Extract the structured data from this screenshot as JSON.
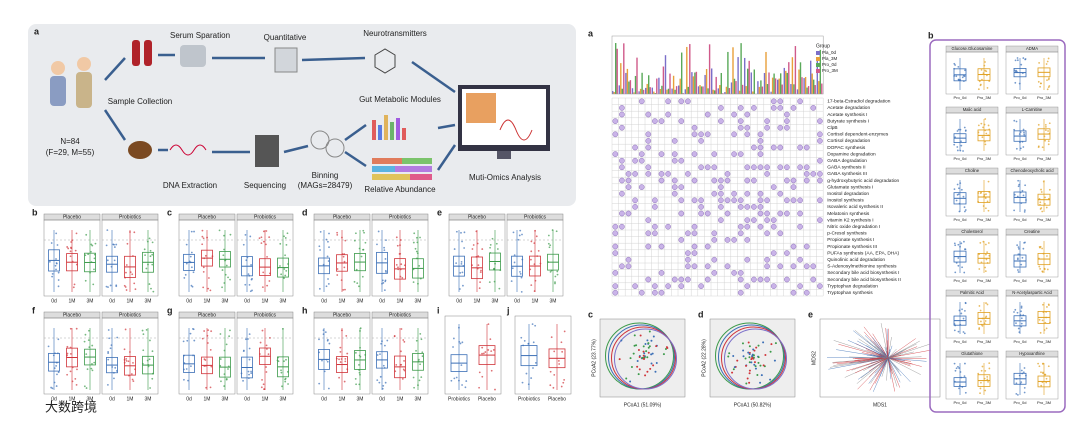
{
  "workflow": {
    "letter": "a",
    "n": "N=84",
    "sex": "(F=29, M=55)",
    "steps": [
      "Sample Collection",
      "Serum Sparation",
      "Quantitative",
      "Neurotransmitters",
      "Gut Metabolic Modules",
      "DNA Extraction",
      "Sequencing",
      "Binning",
      "(MAGs=28479)",
      "Relative Abundance",
      "Muti-Omics Analysis"
    ]
  },
  "clinical_panels": [
    {
      "letter": "b",
      "groups": [
        "Placebo",
        "Probiotics"
      ],
      "times": [
        "0d",
        "1M",
        "3M"
      ]
    },
    {
      "letter": "c",
      "groups": [
        "Placebo",
        "Probiotics"
      ],
      "times": [
        "0d",
        "1M",
        "3M"
      ]
    },
    {
      "letter": "d",
      "groups": [
        "Placebo",
        "Probiotics"
      ],
      "times": [
        "0d",
        "1M",
        "3M"
      ]
    },
    {
      "letter": "e",
      "groups": [
        "Placebo",
        "Probiotics"
      ],
      "times": [
        "0d",
        "1M",
        "3M"
      ]
    },
    {
      "letter": "f",
      "groups": [
        "Placebo",
        "Probiotics"
      ],
      "times": [
        "0d",
        "1M",
        "3M"
      ]
    },
    {
      "letter": "g",
      "groups": [
        "Placebo",
        "Probiotics"
      ],
      "times": [
        "0d",
        "1M",
        "3M"
      ]
    },
    {
      "letter": "h",
      "groups": [
        "Placebo",
        "Probiotics"
      ],
      "times": [
        "0d",
        "1M",
        "3M"
      ]
    }
  ],
  "comparison_panels": [
    {
      "letter": "i",
      "labels": [
        "Probiotics",
        "Placebo"
      ]
    },
    {
      "letter": "j",
      "labels": [
        "Probiotics",
        "Placebo"
      ]
    }
  ],
  "modules": {
    "letter": "a",
    "legend_title": "Group",
    "groups": [
      "Pla_0d",
      "Pla_3M",
      "Pro_0d",
      "Pro_3M"
    ],
    "names": [
      "17-beta-Estradiol degradation",
      "Acetate degradation",
      "Acetate synthesis I",
      "Butyrate synthesis I",
      "ClpB",
      "Cortisol dependent-enzymes",
      "Cortisol degradation",
      "DOPAC synthesis",
      "Dopamine degradation",
      "GABA degradation",
      "GABA synthesis II",
      "GABA synthesis III",
      "g-hydroxybutyric acid degradation",
      "Glutamate synthesis I",
      "Inositol degradation",
      "Inositol synthesis",
      "Isovaleric acid synthesis II",
      "Melatonin synthesis",
      "vitamin K2 synthesis I",
      "Nitric oxide degradation I",
      "p-Cresol synthesis",
      "Propionate synthesis I",
      "Propionate synthesis III",
      "PUFAs synthesis (AA, EPA, DHA)",
      "Quinolinic acid degradation",
      "S-Adenosylmethionine synthesis",
      "Secondary bile acid biosynthesis I",
      "Secondary bile acid biosynthesis II",
      "Tryptophan degradation",
      "Tryptophan synthesis"
    ]
  },
  "pcoa": [
    {
      "letter": "c",
      "x_label": "PCoA1 (51.09%)",
      "y_label": "PCoA2 (23.77%)"
    },
    {
      "letter": "d",
      "x_label": "PCoA1 (50.82%)",
      "y_label": "PCoA2 (22.28%)"
    },
    {
      "letter": "e",
      "x_label": "MDS1",
      "y_label": "MDS2"
    }
  ],
  "metabolites": {
    "letter": "b",
    "groups": [
      "Pro_0d",
      "Pro_3M"
    ],
    "names": [
      "Glucose.Glucosamine",
      "ADMA",
      "Malic acid",
      "L-Carnitine",
      "Choline",
      "Chenodeoxycholic acid",
      "Cholesterol",
      "Creatine",
      "Palmitic Acid",
      "N-Acetylaspartic Acid",
      "Glutathione",
      "Hypoxanthine"
    ]
  }
}
